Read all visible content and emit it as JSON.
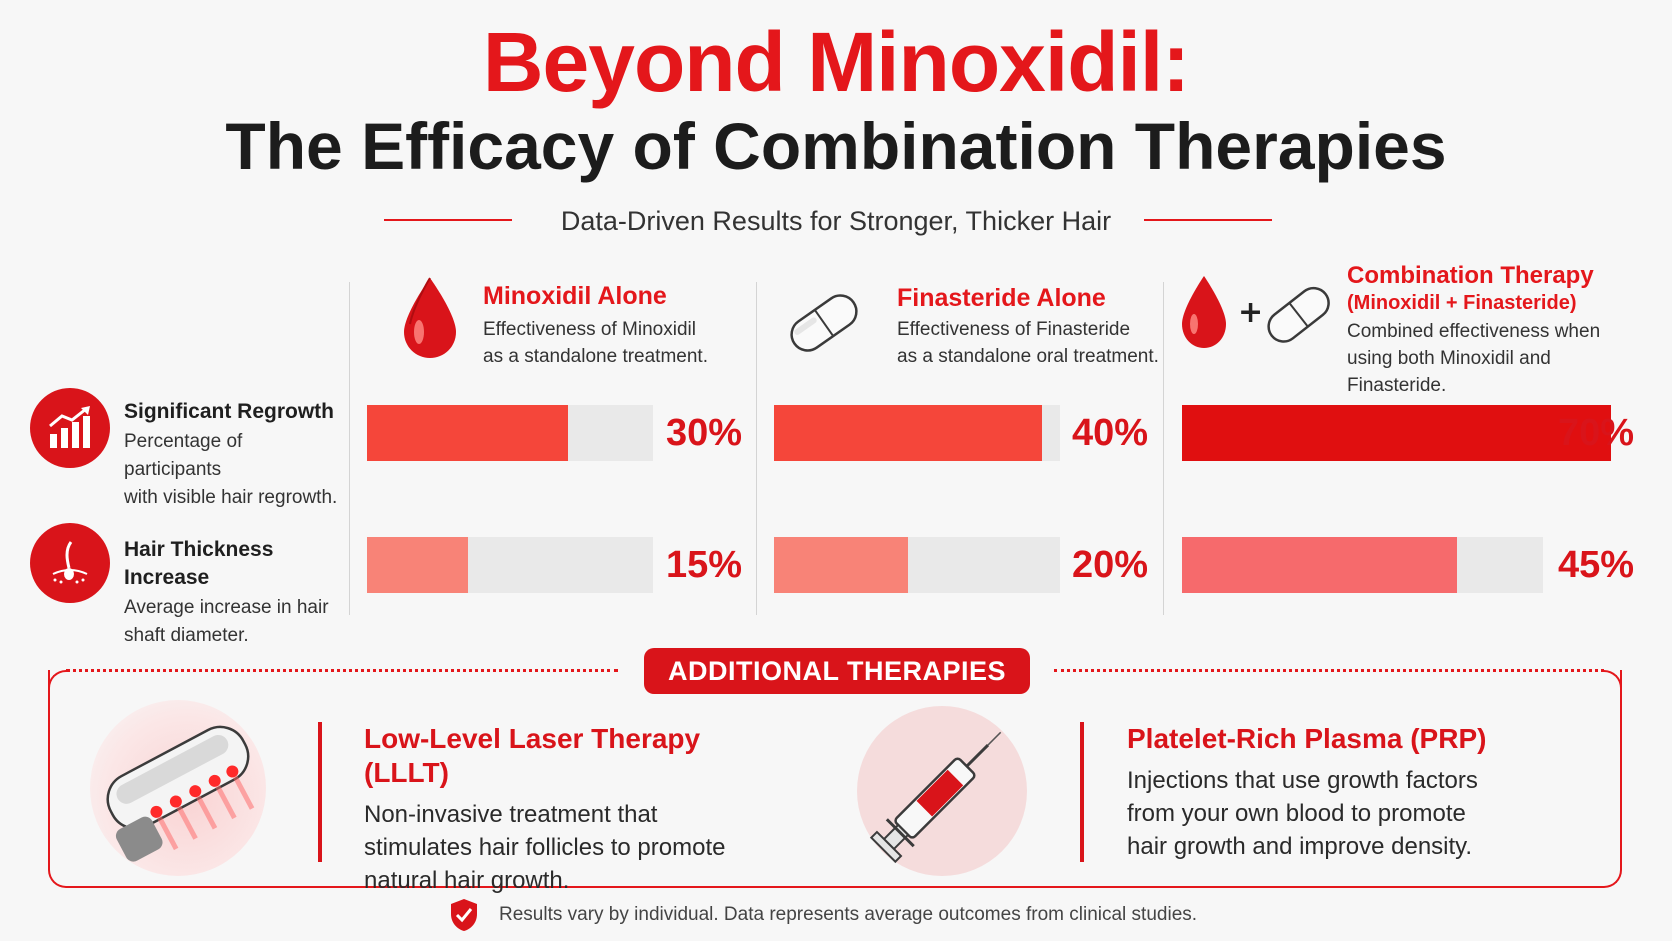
{
  "header": {
    "title": "Beyond Minoxidil:",
    "subtitle": "The Efficacy of Combination Therapies",
    "tagline": "Data-Driven Results for Stronger, Thicker Hair"
  },
  "treatments": [
    {
      "title": "Minoxidil Alone",
      "title2": "",
      "desc1": "Effectiveness of Minoxidil",
      "desc2": "as a standalone treatment.",
      "icon": "blood-drop-icon"
    },
    {
      "title": "Finasteride Alone",
      "title2": "",
      "desc1": "Effectiveness of Finasteride",
      "desc2": "as a standalone oral treatment.",
      "icon": "pill-icon"
    },
    {
      "title": "Combination Therapy",
      "title2": "(Minoxidil + Finasteride)",
      "desc1": "Combined effectiveness when",
      "desc2": "using both Minoxidil and Finasteride.",
      "icon": "drop-plus-pill-icon"
    }
  ],
  "metrics": [
    {
      "title": "Significant Regrowth",
      "desc1": "Percentage of participants",
      "desc2": "with visible hair regrowth.",
      "icon": "growth-chart-icon"
    },
    {
      "title": "Hair Thickness Increase",
      "desc1": "Average increase in hair",
      "desc2": "shaft diameter.",
      "icon": "hair-follicle-icon"
    }
  ],
  "chart_data": {
    "type": "bar",
    "orientation": "horizontal",
    "categories": [
      "Minoxidil Alone",
      "Finasteride Alone",
      "Combination Therapy"
    ],
    "series": [
      {
        "name": "Significant Regrowth",
        "values": [
          30,
          40,
          70
        ],
        "labels": [
          "30%",
          "40%",
          "70%"
        ]
      },
      {
        "name": "Hair Thickness Increase",
        "values": [
          15,
          20,
          45
        ],
        "labels": [
          "15%",
          "20%",
          "45%"
        ]
      }
    ],
    "xlim": [
      0,
      70
    ],
    "unit": "%"
  },
  "colors": {
    "accent": "#e4171b",
    "regrowth_bar": "#f5463a",
    "regrowth_bar_strong": "#e00f10",
    "thickness_bar": "#f88377",
    "thickness_bar_strong": "#f66a6c",
    "track": "#e9e9e9"
  },
  "additional": {
    "badge": "ADDITIONAL THERAPIES",
    "items": [
      {
        "title": "Low-Level Laser Therapy (LLLT)",
        "lines": [
          "Non-invasive treatment that",
          "stimulates hair follicles to promote",
          "natural hair growth."
        ],
        "icon": "laser-device-icon"
      },
      {
        "title": "Platelet-Rich Plasma (PRP)",
        "lines": [
          "Injections that use growth factors",
          "from your own blood to promote",
          "hair growth and improve density."
        ],
        "icon": "syringe-icon"
      }
    ]
  },
  "footer": {
    "note": "Results vary by individual. Data represents average outcomes from clinical studies.",
    "icon": "shield-check-icon"
  }
}
